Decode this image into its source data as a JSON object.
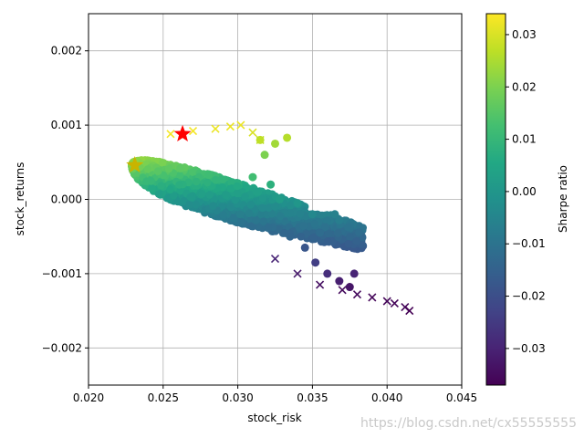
{
  "chart_data": {
    "type": "scatter",
    "title": "",
    "xlabel": "stock_risk",
    "ylabel": "stock_returns",
    "xlim": [
      0.02,
      0.045
    ],
    "ylim": [
      -0.0025,
      0.0025
    ],
    "xticks": [
      0.02,
      0.025,
      0.03,
      0.035,
      0.04,
      0.045
    ],
    "yticks": [
      -0.002,
      -0.001,
      0.0,
      0.001,
      0.002
    ],
    "xtick_labels": [
      "0.020",
      "0.025",
      "0.030",
      "0.035",
      "0.040",
      "0.045"
    ],
    "ytick_labels": [
      "−0.002",
      "−0.001",
      "0.000",
      "0.001",
      "0.002"
    ],
    "grid": true,
    "colormap": "viridis",
    "colorbar": {
      "label": "Sharpe ratio",
      "range": [
        -0.037,
        0.034
      ],
      "ticks": [
        -0.03,
        -0.02,
        -0.01,
        0.0,
        0.01,
        0.02,
        0.03
      ],
      "tick_labels": [
        "−0.03",
        "−0.02",
        "−0.01",
        "0.00",
        "0.01",
        "0.02",
        "0.03"
      ]
    },
    "series": [
      {
        "marker": "x",
        "points": [
          {
            "x": 0.0255,
            "y": 0.00088,
            "c": 0.033
          },
          {
            "x": 0.027,
            "y": 0.00092,
            "c": 0.033
          },
          {
            "x": 0.0285,
            "y": 0.00095,
            "c": 0.032
          },
          {
            "x": 0.0295,
            "y": 0.00098,
            "c": 0.032
          },
          {
            "x": 0.0302,
            "y": 0.001,
            "c": 0.032
          },
          {
            "x": 0.031,
            "y": 0.0009,
            "c": 0.03
          },
          {
            "x": 0.0315,
            "y": 0.0008,
            "c": 0.027
          },
          {
            "x": 0.0325,
            "y": -0.0008,
            "c": -0.03
          },
          {
            "x": 0.034,
            "y": -0.001,
            "c": -0.032
          },
          {
            "x": 0.0355,
            "y": -0.00115,
            "c": -0.034
          },
          {
            "x": 0.037,
            "y": -0.00122,
            "c": -0.035
          },
          {
            "x": 0.038,
            "y": -0.00128,
            "c": -0.035
          },
          {
            "x": 0.039,
            "y": -0.00132,
            "c": -0.036
          },
          {
            "x": 0.04,
            "y": -0.00137,
            "c": -0.036
          },
          {
            "x": 0.0405,
            "y": -0.0014,
            "c": -0.036
          },
          {
            "x": 0.0412,
            "y": -0.00145,
            "c": -0.036
          },
          {
            "x": 0.0415,
            "y": -0.0015,
            "c": -0.037
          }
        ]
      },
      {
        "marker": "o",
        "points": [
          {
            "x": 0.0315,
            "y": 0.0008,
            "c": 0.027
          },
          {
            "x": 0.0325,
            "y": 0.00075,
            "c": 0.024
          },
          {
            "x": 0.0333,
            "y": 0.00083,
            "c": 0.026
          },
          {
            "x": 0.0318,
            "y": 0.0006,
            "c": 0.02
          },
          {
            "x": 0.031,
            "y": 0.0003,
            "c": 0.012
          },
          {
            "x": 0.0322,
            "y": 0.0002,
            "c": 0.008
          },
          {
            "x": 0.0328,
            "y": 0.0,
            "c": 0.002
          },
          {
            "x": 0.034,
            "y": -5e-05,
            "c": 0.0
          },
          {
            "x": 0.035,
            "y": -0.0002,
            "c": -0.004
          },
          {
            "x": 0.0355,
            "y": -0.00045,
            "c": -0.012
          },
          {
            "x": 0.0365,
            "y": -0.0002,
            "c": -0.006
          },
          {
            "x": 0.0368,
            "y": -0.00028,
            "c": -0.007
          },
          {
            "x": 0.0345,
            "y": -0.00065,
            "c": -0.018
          },
          {
            "x": 0.0335,
            "y": -0.0005,
            "c": -0.014
          },
          {
            "x": 0.0352,
            "y": -0.00085,
            "c": -0.024
          },
          {
            "x": 0.036,
            "y": -0.001,
            "c": -0.028
          },
          {
            "x": 0.0368,
            "y": -0.0011,
            "c": -0.031
          },
          {
            "x": 0.0378,
            "y": -0.001,
            "c": -0.03
          },
          {
            "x": 0.0375,
            "y": -0.00118,
            "c": -0.033
          }
        ]
      },
      {
        "name": "",
        "marker": "star",
        "color": "#ff0000",
        "points": [
          {
            "x": 0.0263,
            "y": 0.00088
          }
        ]
      },
      {
        "name": "",
        "marker": "star",
        "color": "#c8b400",
        "points": [
          {
            "x": 0.0231,
            "y": 0.00046
          }
        ]
      }
    ],
    "cloud_description_note": ""
  },
  "watermark": "https://blog.csdn.net/cx55555555"
}
